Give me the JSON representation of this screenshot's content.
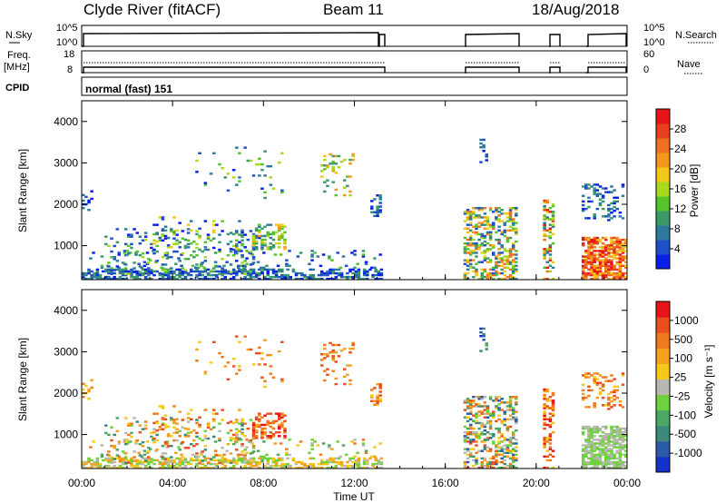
{
  "header": {
    "station": "Clyde River (fitACF)",
    "beam": "Beam 11",
    "date": "18/Aug/2018"
  },
  "params": {
    "nsky_label": "N.Sky",
    "nsearch_label": "N.Search",
    "freq_label_1": "Freq.",
    "freq_label_2": "[MHz]",
    "nave_label": "Nave",
    "cpid_label": "CPID",
    "cpid_value": "normal (fast) 151",
    "left_ticks_noise": [
      "10^5",
      "10^0"
    ],
    "right_ticks_noise": [
      "10^5",
      "10^0"
    ],
    "left_ticks_freq": [
      "18",
      "8"
    ],
    "right_ticks_freq": [
      "60",
      "0"
    ]
  },
  "chart_data": [
    {
      "type": "heatmap",
      "name": "power",
      "ylabel": "Slant Range [km]",
      "ylim": [
        180,
        4500
      ],
      "yticks": [
        1000,
        2000,
        3000,
        4000
      ],
      "colorbar": {
        "label": "Power [dB]",
        "ticks": [
          "4",
          "8",
          "12",
          "16",
          "20",
          "24",
          "28"
        ],
        "colors": [
          "#0a1ee6",
          "#1e50c8",
          "#2f7a9c",
          "#3c9a6a",
          "#54c42a",
          "#a8d81e",
          "#f2c81a",
          "#f5961e",
          "#f07022",
          "#e8401e",
          "#e81418"
        ]
      }
    },
    {
      "type": "heatmap",
      "name": "velocity",
      "xlabel": "Time UT",
      "ylabel": "Slant Range [km]",
      "ylim": [
        180,
        4500
      ],
      "yticks": [
        1000,
        2000,
        3000,
        4000
      ],
      "xticks": [
        "00:00",
        "04:00",
        "08:00",
        "12:00",
        "16:00",
        "20:00",
        "00:00"
      ],
      "colorbar": {
        "label": "Velocity [m s⁻¹]",
        "ticks": [
          "1000",
          "500",
          "100",
          "25",
          "-25",
          "-100",
          "-500",
          "-1000"
        ],
        "colors": [
          "#1432c8",
          "#2a5aa8",
          "#3c8a7a",
          "#4aa862",
          "#6ed23c",
          "#b8b8b0",
          "#f5c81a",
          "#f5a01e",
          "#f07a1e",
          "#e8501e",
          "#e81418"
        ]
      }
    }
  ]
}
